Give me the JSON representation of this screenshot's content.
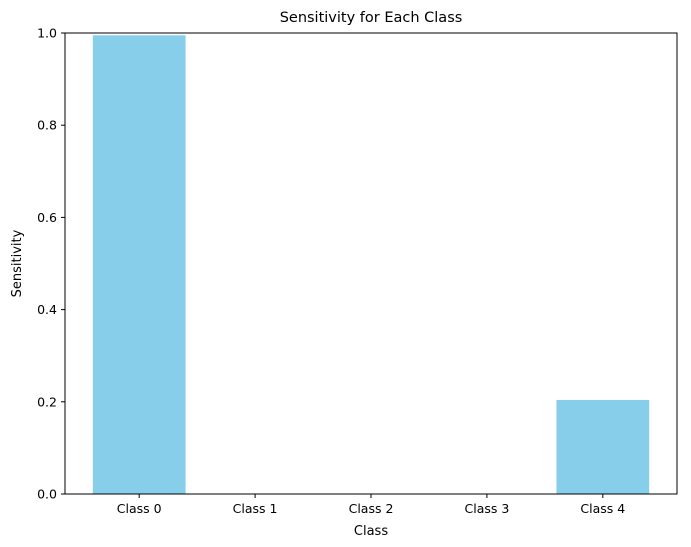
{
  "chart_data": {
    "type": "bar",
    "title": "Sensitivity for Each Class",
    "xlabel": "Class",
    "ylabel": "Sensitivity",
    "categories": [
      "Class 0",
      "Class 1",
      "Class 2",
      "Class 3",
      "Class 4"
    ],
    "values": [
      0.995,
      0.0,
      0.0,
      0.0,
      0.204
    ],
    "ylim": [
      0,
      1.0
    ],
    "yticks": [
      "0.0",
      "0.2",
      "0.4",
      "0.6",
      "0.8",
      "1.0"
    ],
    "grid": false,
    "bar_color": "#87ceeb"
  }
}
